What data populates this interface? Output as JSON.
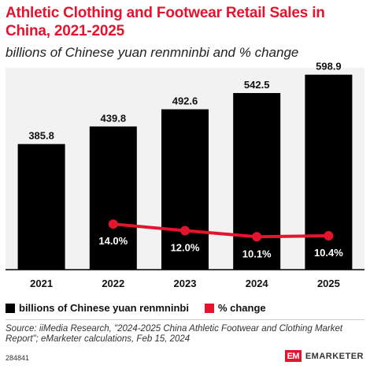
{
  "header": {
    "title": "Athletic Clothing and Footwear Retail Sales in China, 2021-2025",
    "subtitle": "billions of Chinese yuan renmninbi and % change"
  },
  "chart_data": {
    "type": "bar",
    "categories": [
      "2021",
      "2022",
      "2023",
      "2024",
      "2025"
    ],
    "series": [
      {
        "name": "billions of Chinese yuan renmninbi",
        "type": "bar",
        "values": [
          385.8,
          439.8,
          492.6,
          542.5,
          598.9
        ],
        "labels": [
          "385.8",
          "439.8",
          "492.6",
          "542.5",
          "598.9"
        ],
        "color": "#000000"
      },
      {
        "name": "% change",
        "type": "line",
        "values": [
          null,
          14.0,
          12.0,
          10.1,
          10.4
        ],
        "labels": [
          "",
          "14.0%",
          "12.0%",
          "10.1%",
          "10.4%"
        ],
        "color": "#e3142d"
      }
    ],
    "ylim": [
      0,
      620
    ],
    "pct_ylim": [
      0,
      62
    ],
    "grid": false,
    "legend_position": "bottom-left"
  },
  "legend": {
    "items": [
      {
        "label": "billions of Chinese yuan renmninbi",
        "color": "#000000"
      },
      {
        "label": "% change",
        "color": "#e3142d"
      }
    ]
  },
  "footer": {
    "source": "Source: iiMedia Research, \"2024-2025 China Athletic Footwear and Clothing Market Report\"; eMarketer calculations, Feb 15, 2024",
    "chart_id": "284841",
    "brand_mark": "EM",
    "brand_name": "EMARKETER"
  }
}
